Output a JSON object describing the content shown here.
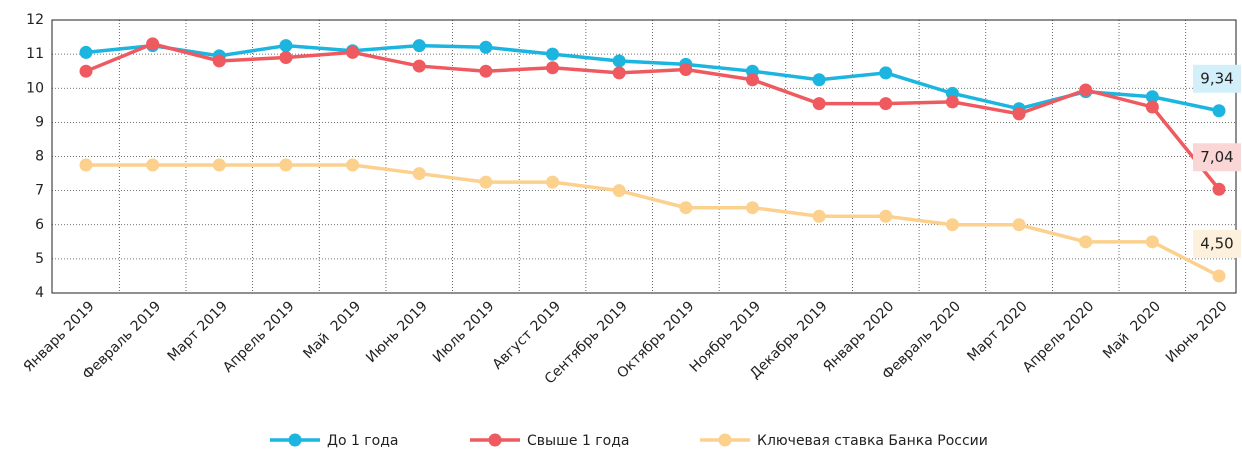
{
  "chart_data": {
    "type": "line",
    "categories": [
      "Январь 2019",
      "Февраль 2019",
      "Март 2019",
      "Апрель 2019",
      "Май  2019",
      "Июнь 2019",
      "Июль 2019",
      "Август 2019",
      "Сентябрь 2019",
      "Октябрь 2019",
      "Ноябрь 2019",
      "Декабрь 2019",
      "Январь 2020",
      "Февраль 2020",
      "Март 2020",
      "Апрель 2020",
      "Май  2020",
      "Июнь 2020"
    ],
    "series": [
      {
        "name": "До 1 года",
        "color": "#1bb5e0",
        "label_bg": "#d3f0fa",
        "values": [
          11.05,
          11.25,
          10.95,
          11.25,
          11.1,
          11.25,
          11.2,
          11.0,
          10.8,
          10.7,
          10.5,
          10.25,
          10.45,
          9.85,
          9.4,
          9.9,
          9.75,
          9.34
        ],
        "value_labels": [
          null,
          null,
          null,
          null,
          null,
          null,
          null,
          null,
          null,
          null,
          null,
          null,
          null,
          null,
          null,
          null,
          null,
          "9,34"
        ]
      },
      {
        "name": "Свыше 1 года",
        "color": "#ee5a5f",
        "label_bg": "#fbd6d7",
        "values": [
          10.5,
          11.3,
          10.8,
          10.9,
          11.05,
          10.65,
          10.5,
          10.6,
          10.45,
          10.55,
          10.25,
          9.55,
          9.55,
          9.6,
          9.25,
          9.95,
          9.45,
          7.04
        ],
        "value_labels": [
          null,
          null,
          null,
          null,
          null,
          null,
          null,
          null,
          null,
          null,
          null,
          null,
          null,
          null,
          null,
          null,
          null,
          "7,04"
        ]
      },
      {
        "name": "Ключевая ставка Банка России",
        "color": "#fcd08d",
        "label_bg": "#fdf1de",
        "values": [
          7.75,
          7.75,
          7.75,
          7.75,
          7.75,
          7.5,
          7.25,
          7.25,
          7.0,
          6.5,
          6.5,
          6.25,
          6.25,
          6.0,
          6.0,
          5.5,
          5.5,
          4.5
        ],
        "value_labels": [
          null,
          null,
          null,
          null,
          null,
          null,
          null,
          null,
          null,
          null,
          null,
          null,
          null,
          null,
          null,
          null,
          null,
          "4,50"
        ]
      }
    ],
    "ylim": [
      4,
      12
    ],
    "yticks": [
      4,
      5,
      6,
      7,
      8,
      9,
      10,
      11,
      12
    ],
    "grid": true
  }
}
